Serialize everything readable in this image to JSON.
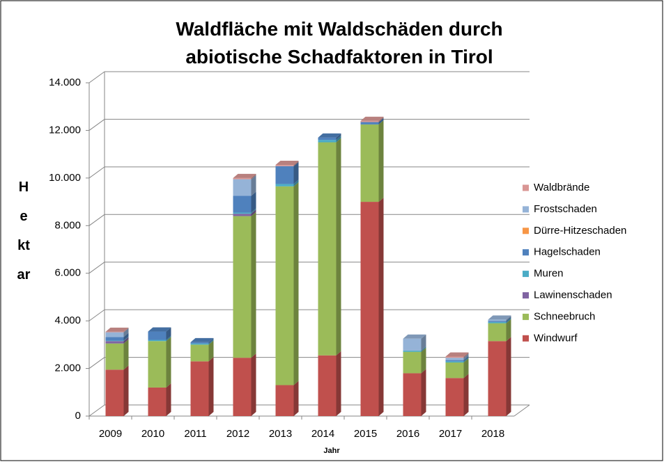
{
  "chart_data": {
    "type": "bar3d_stacked",
    "title": "Waldfläche mit Waldschäden durch abiotische Schadfaktoren in Tirol",
    "xlabel": "Jahr",
    "ylabel": "Hektar",
    "categories": [
      "2009",
      "2010",
      "2011",
      "2012",
      "2013",
      "2014",
      "2015",
      "2016",
      "2017",
      "2018"
    ],
    "series": [
      {
        "name": "Windwurf",
        "color": "#c0504d",
        "values": [
          1950,
          1200,
          2300,
          2450,
          1300,
          2550,
          9000,
          1800,
          1600,
          3150
        ]
      },
      {
        "name": "Schneebruch",
        "color": "#9bbb59",
        "values": [
          1100,
          1950,
          700,
          5950,
          8350,
          8950,
          3250,
          900,
          650,
          750
        ]
      },
      {
        "name": "Lawinenschaden",
        "color": "#8064a2",
        "values": [
          100,
          0,
          0,
          100,
          0,
          0,
          0,
          0,
          0,
          0
        ]
      },
      {
        "name": "Muren",
        "color": "#4bacc6",
        "values": [
          20,
          50,
          50,
          50,
          100,
          100,
          0,
          50,
          50,
          50
        ]
      },
      {
        "name": "Hagelschaden",
        "color": "#4f81bd",
        "values": [
          150,
          350,
          50,
          700,
          750,
          100,
          100,
          0,
          50,
          50
        ]
      },
      {
        "name": "Dürre-Hitzeschaden",
        "color": "#f79646",
        "values": [
          0,
          0,
          0,
          0,
          0,
          0,
          0,
          0,
          0,
          0
        ]
      },
      {
        "name": "Frostschaden",
        "color": "#95b3d7",
        "values": [
          200,
          0,
          0,
          700,
          0,
          0,
          0,
          500,
          100,
          50
        ]
      },
      {
        "name": "Waldbrände",
        "color": "#d99694",
        "values": [
          20,
          0,
          0,
          50,
          50,
          0,
          50,
          0,
          50,
          0
        ]
      }
    ],
    "ylim": [
      0,
      14000
    ],
    "yticks": [
      0,
      {
        "value": 2000,
        "label": "2.000"
      },
      {
        "value": 4000,
        "label": "4.000"
      },
      {
        "value": 6000,
        "label": "6.000"
      },
      {
        "value": 8000,
        "label": "8.000"
      },
      {
        "value": 10000,
        "label": "10.000"
      },
      {
        "value": 12000,
        "label": "12.000"
      },
      {
        "value": 14000,
        "label": "14.000"
      }
    ],
    "grid": true,
    "legend": "right"
  }
}
